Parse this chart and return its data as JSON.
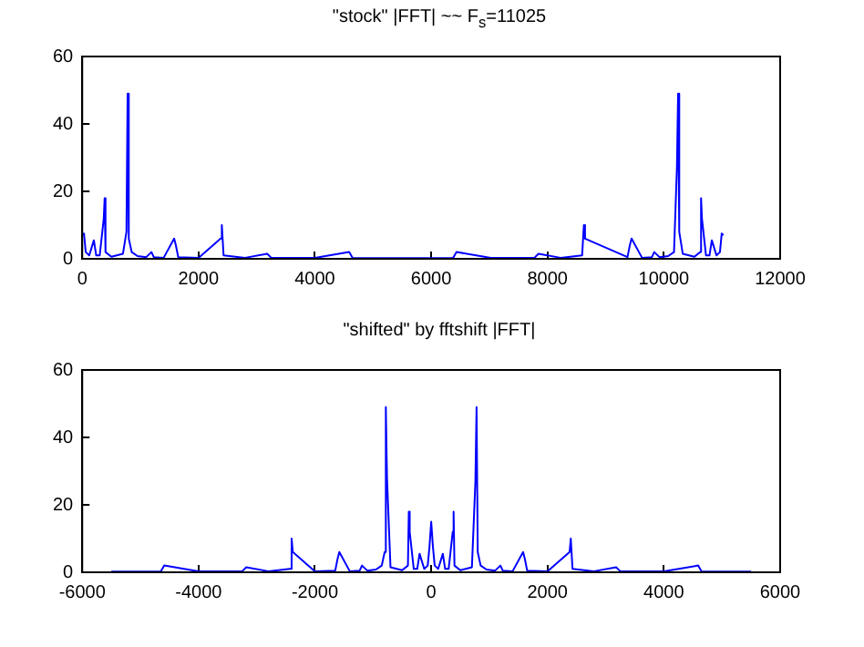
{
  "chart_data": [
    {
      "type": "line",
      "title": "\"stock\" |FFT|  ~~  F$_{s}$=11025",
      "xlim": [
        0,
        12000
      ],
      "xticks": [
        0,
        2000,
        4000,
        6000,
        8000,
        10000,
        12000
      ],
      "ylim": [
        0,
        60
      ],
      "yticks": [
        0,
        20,
        40,
        60
      ],
      "x": [
        0,
        30,
        60,
        120,
        200,
        240,
        300,
        370,
        385,
        400,
        500,
        700,
        760,
        780,
        800,
        850,
        950,
        1100,
        1190,
        1230,
        1400,
        1580,
        1610,
        1650,
        2000,
        2380,
        2400,
        2430,
        2800,
        3180,
        3250,
        4000,
        4590,
        4650,
        5500,
        5525,
        6375,
        6435,
        7025,
        7775,
        7845,
        8225,
        8595,
        8625,
        8645,
        9375,
        9415,
        9445,
        9625,
        9795,
        9835,
        9925,
        10075,
        10175,
        10225,
        10245,
        10265,
        10325,
        10525,
        10625,
        10640,
        10655,
        10725,
        10785,
        10825,
        10905,
        10965,
        10995,
        11025
      ],
      "series": [
        {
          "color": "#0000ff",
          "values": [
            7,
            7.5,
            2,
            1,
            5.5,
            1,
            1,
            12,
            18,
            2,
            0.6,
            1.5,
            8,
            49,
            6,
            2,
            0.8,
            0.5,
            2,
            0.5,
            0.3,
            6,
            4,
            0.5,
            0.3,
            6,
            10,
            1,
            0.3,
            1.5,
            0.3,
            0.3,
            2,
            0.2,
            0.2,
            0.2,
            0.2,
            2,
            0.3,
            0.3,
            1.5,
            0.3,
            1,
            10,
            6,
            0.5,
            4,
            6,
            0.3,
            0.5,
            2,
            0.5,
            0.8,
            2,
            27,
            49,
            8,
            1.5,
            0.6,
            2,
            18,
            12,
            1,
            1,
            5.5,
            1,
            2,
            7.5,
            7
          ]
        }
      ]
    },
    {
      "type": "line",
      "title": "\"shifted\" by fftshift |FFT|",
      "xlim": [
        -6000,
        6000
      ],
      "xticks": [
        -6000,
        -4000,
        -2000,
        0,
        2000,
        4000,
        6000
      ],
      "ylim": [
        0,
        60
      ],
      "yticks": [
        0,
        20,
        40,
        60
      ],
      "x": [
        -5500,
        -4650,
        -4590,
        -4000,
        -3250,
        -3180,
        -2800,
        -2430,
        -2400,
        -2380,
        -2000,
        -1650,
        -1610,
        -1580,
        -1400,
        -1230,
        -1190,
        -1100,
        -950,
        -850,
        -800,
        -780,
        -760,
        -700,
        -500,
        -400,
        -385,
        -370,
        -300,
        -240,
        -200,
        -120,
        -60,
        -30,
        0,
        30,
        60,
        120,
        200,
        240,
        300,
        370,
        385,
        400,
        500,
        700,
        760,
        780,
        800,
        850,
        950,
        1100,
        1190,
        1230,
        1400,
        1580,
        1610,
        1650,
        2000,
        2380,
        2400,
        2430,
        2800,
        3180,
        3250,
        4000,
        4590,
        4650,
        5500
      ],
      "series": [
        {
          "color": "#0000ff",
          "values": [
            0.2,
            0.2,
            2,
            0.3,
            0.3,
            1.5,
            0.3,
            1,
            10,
            6,
            0.3,
            0.5,
            4,
            6,
            0.3,
            0.5,
            2,
            0.5,
            0.8,
            2,
            6,
            49,
            28,
            1.5,
            0.6,
            2,
            18,
            12,
            1,
            1,
            5.5,
            1,
            2,
            7.5,
            15,
            7.5,
            2,
            1,
            5.5,
            1,
            1,
            12,
            18,
            2,
            0.6,
            1.5,
            27,
            49,
            6,
            2,
            0.8,
            0.5,
            2,
            0.5,
            0.3,
            6,
            4,
            0.5,
            0.3,
            6,
            10,
            1,
            0.3,
            1.5,
            0.3,
            0.3,
            2,
            0.2,
            0.2
          ]
        }
      ]
    }
  ]
}
